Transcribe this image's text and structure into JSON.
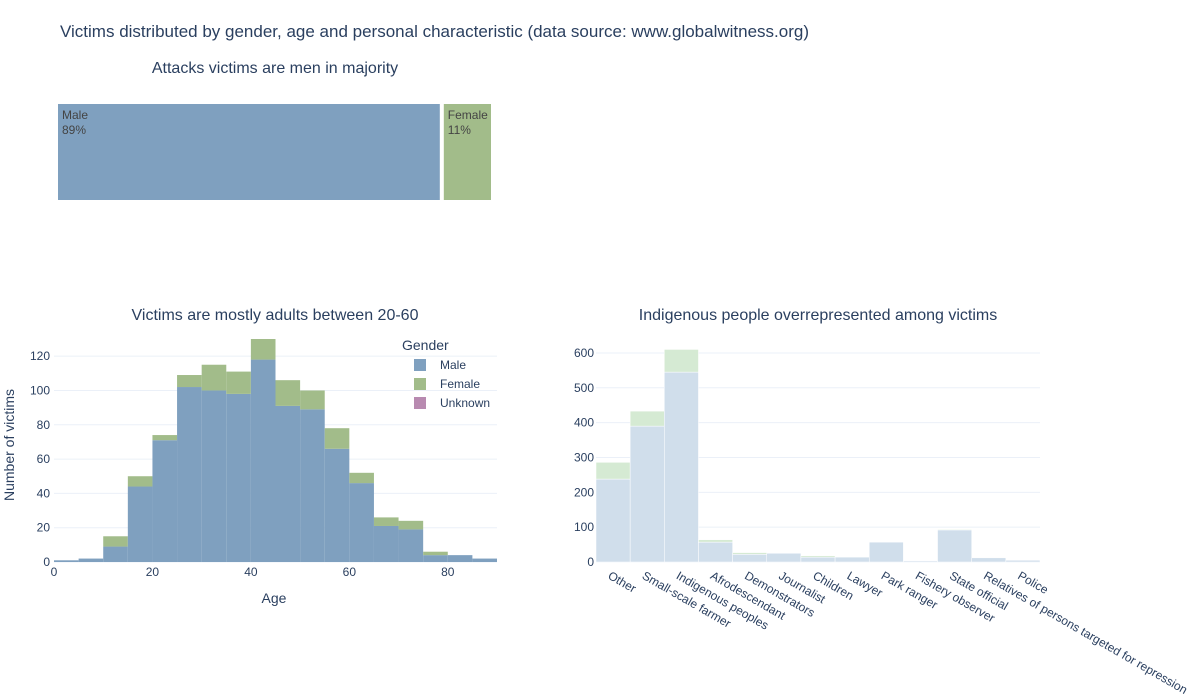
{
  "title": "Victims distributed by gender, age and personal characteristic (data source: www.globalwitness.org)",
  "colors": {
    "male": "#7fa0bf",
    "female": "#a2bc8a",
    "unknown": "#b88ab0",
    "char_base": "#d0deeb",
    "char_top": "#d5ead3",
    "grid": "#ebf0f8",
    "text": "#2a3f5f"
  },
  "chart_data": [
    {
      "type": "treemap",
      "title": "Attacks victims are men in majority",
      "items": [
        {
          "label": "Male",
          "percent_label": "89%",
          "share": 0.89
        },
        {
          "label": "Female",
          "percent_label": "11%",
          "share": 0.11
        }
      ]
    },
    {
      "type": "bar",
      "stacked": true,
      "title": "Victims are mostly adults between 20-60",
      "xlabel": "Age",
      "ylabel": "Number of victims",
      "xlim": [
        0,
        90
      ],
      "ylim": [
        0,
        130
      ],
      "xticks": [
        0,
        20,
        40,
        60,
        80
      ],
      "yticks": [
        0,
        20,
        40,
        60,
        80,
        100,
        120
      ],
      "bin_starts": [
        0,
        5,
        10,
        15,
        20,
        25,
        30,
        35,
        40,
        45,
        50,
        55,
        60,
        65,
        70,
        75,
        80,
        85
      ],
      "bin_width": 5,
      "legend_title": "Gender",
      "legend_position": "top-right",
      "series": [
        {
          "name": "Male",
          "values": [
            1,
            2,
            9,
            44,
            71,
            102,
            100,
            98,
            118,
            91,
            89,
            66,
            46,
            21,
            19,
            4,
            4,
            2
          ]
        },
        {
          "name": "Female",
          "values": [
            0,
            0,
            6,
            6,
            3,
            7,
            15,
            13,
            12,
            15,
            11,
            12,
            6,
            5,
            5,
            2,
            0,
            0
          ]
        },
        {
          "name": "Unknown",
          "values": [
            0,
            0,
            0,
            0,
            0,
            0,
            0,
            0,
            0,
            0,
            0,
            0,
            0,
            0,
            0,
            0,
            0,
            0
          ]
        }
      ]
    },
    {
      "type": "bar",
      "stacked": true,
      "title": "Indigenous people overrepresented among victims",
      "ylim": [
        0,
        640
      ],
      "yticks": [
        0,
        100,
        200,
        300,
        400,
        500,
        600
      ],
      "categories": [
        "Other",
        "Small-scale farmer",
        "Indigenous peoples",
        "Afrodescendant",
        "Demonstrators",
        "Journalist",
        "Children",
        "Lawyer",
        "Park ranger",
        "Fishery observer",
        "State official",
        "Relatives of persons targeted for repression",
        "Police"
      ],
      "series": [
        {
          "values": [
            238,
            390,
            545,
            57,
            22,
            25,
            14,
            14,
            57,
            3,
            92,
            12,
            5
          ]
        },
        {
          "values": [
            48,
            43,
            65,
            7,
            5,
            0,
            4,
            0,
            0,
            0,
            2,
            0,
            0
          ]
        }
      ]
    }
  ]
}
